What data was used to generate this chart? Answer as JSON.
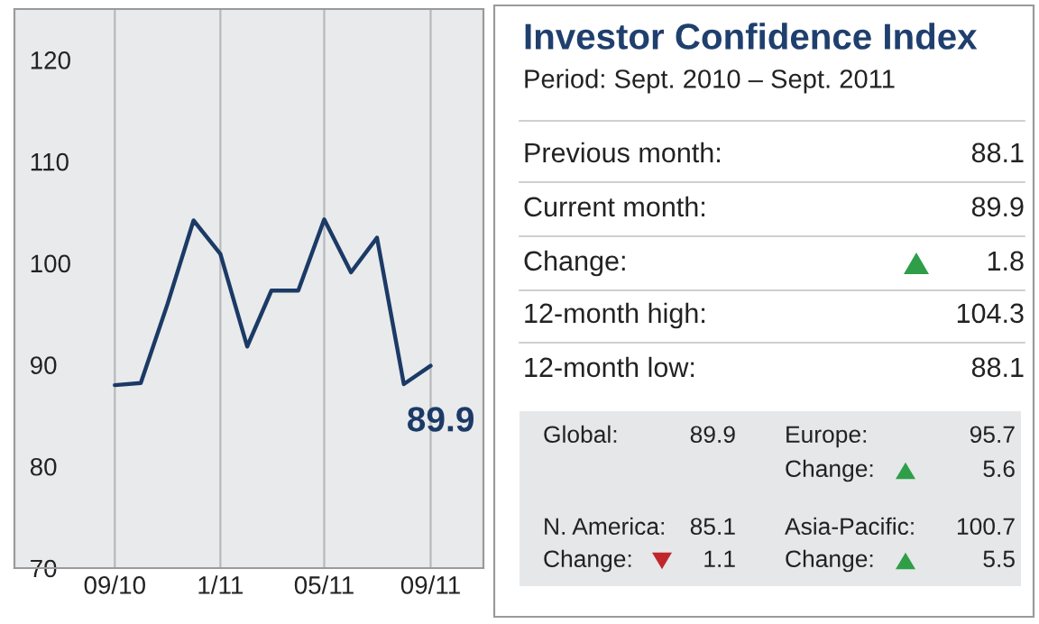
{
  "chart_data": [
    {
      "type": "line",
      "x": [
        "2010-09",
        "2010-10",
        "2010-11",
        "2010-12",
        "2011-01",
        "2011-02",
        "2011-03",
        "2011-04",
        "2011-05",
        "2011-06",
        "2011-07",
        "2011-08",
        "2011-09"
      ],
      "series": [
        {
          "color": "#1b3a66",
          "values": [
            88.0,
            88.2,
            96,
            104.2,
            100.9,
            91.8,
            97.3,
            97.3,
            104.3,
            99.1,
            102.5,
            88.1,
            89.9
          ]
        }
      ],
      "xlim": [
        "2010-05-08",
        "2011-11-01"
      ],
      "ylim": [
        70,
        125
      ],
      "xticks": [
        {
          "value": "2010-09",
          "label": "09/10"
        },
        {
          "value": "2011-01",
          "label": "1/11"
        },
        {
          "value": "2011-05",
          "label": "05/11"
        },
        {
          "value": "2011-09",
          "label": "09/11"
        }
      ],
      "yticks": [
        70,
        80,
        90,
        100,
        110,
        120
      ],
      "grid": "x",
      "marker": "none",
      "line_style": "solid",
      "annotations": [
        {
          "text": "89.9",
          "x": "2011-09",
          "y": 89.9
        }
      ]
    },
    {
      "type": "other",
      "title": "Investor Confidence Index",
      "subtitle": "Period: Sept. 2010 – Sept. 2011",
      "annotations": [
        "Previous month:",
        "88.1",
        "Current month:",
        "89.9",
        "Change:",
        "1.8",
        "12-month high:",
        "104.3",
        "12-month low:",
        "88.1",
        "Global:",
        "89.9",
        "Europe:",
        "95.7",
        "Change:",
        "5.6",
        "N. America:",
        "85.1",
        "Change:",
        "1.1",
        "Asia-Pacific:",
        "100.7",
        "Change:",
        "5.5"
      ]
    }
  ]
}
